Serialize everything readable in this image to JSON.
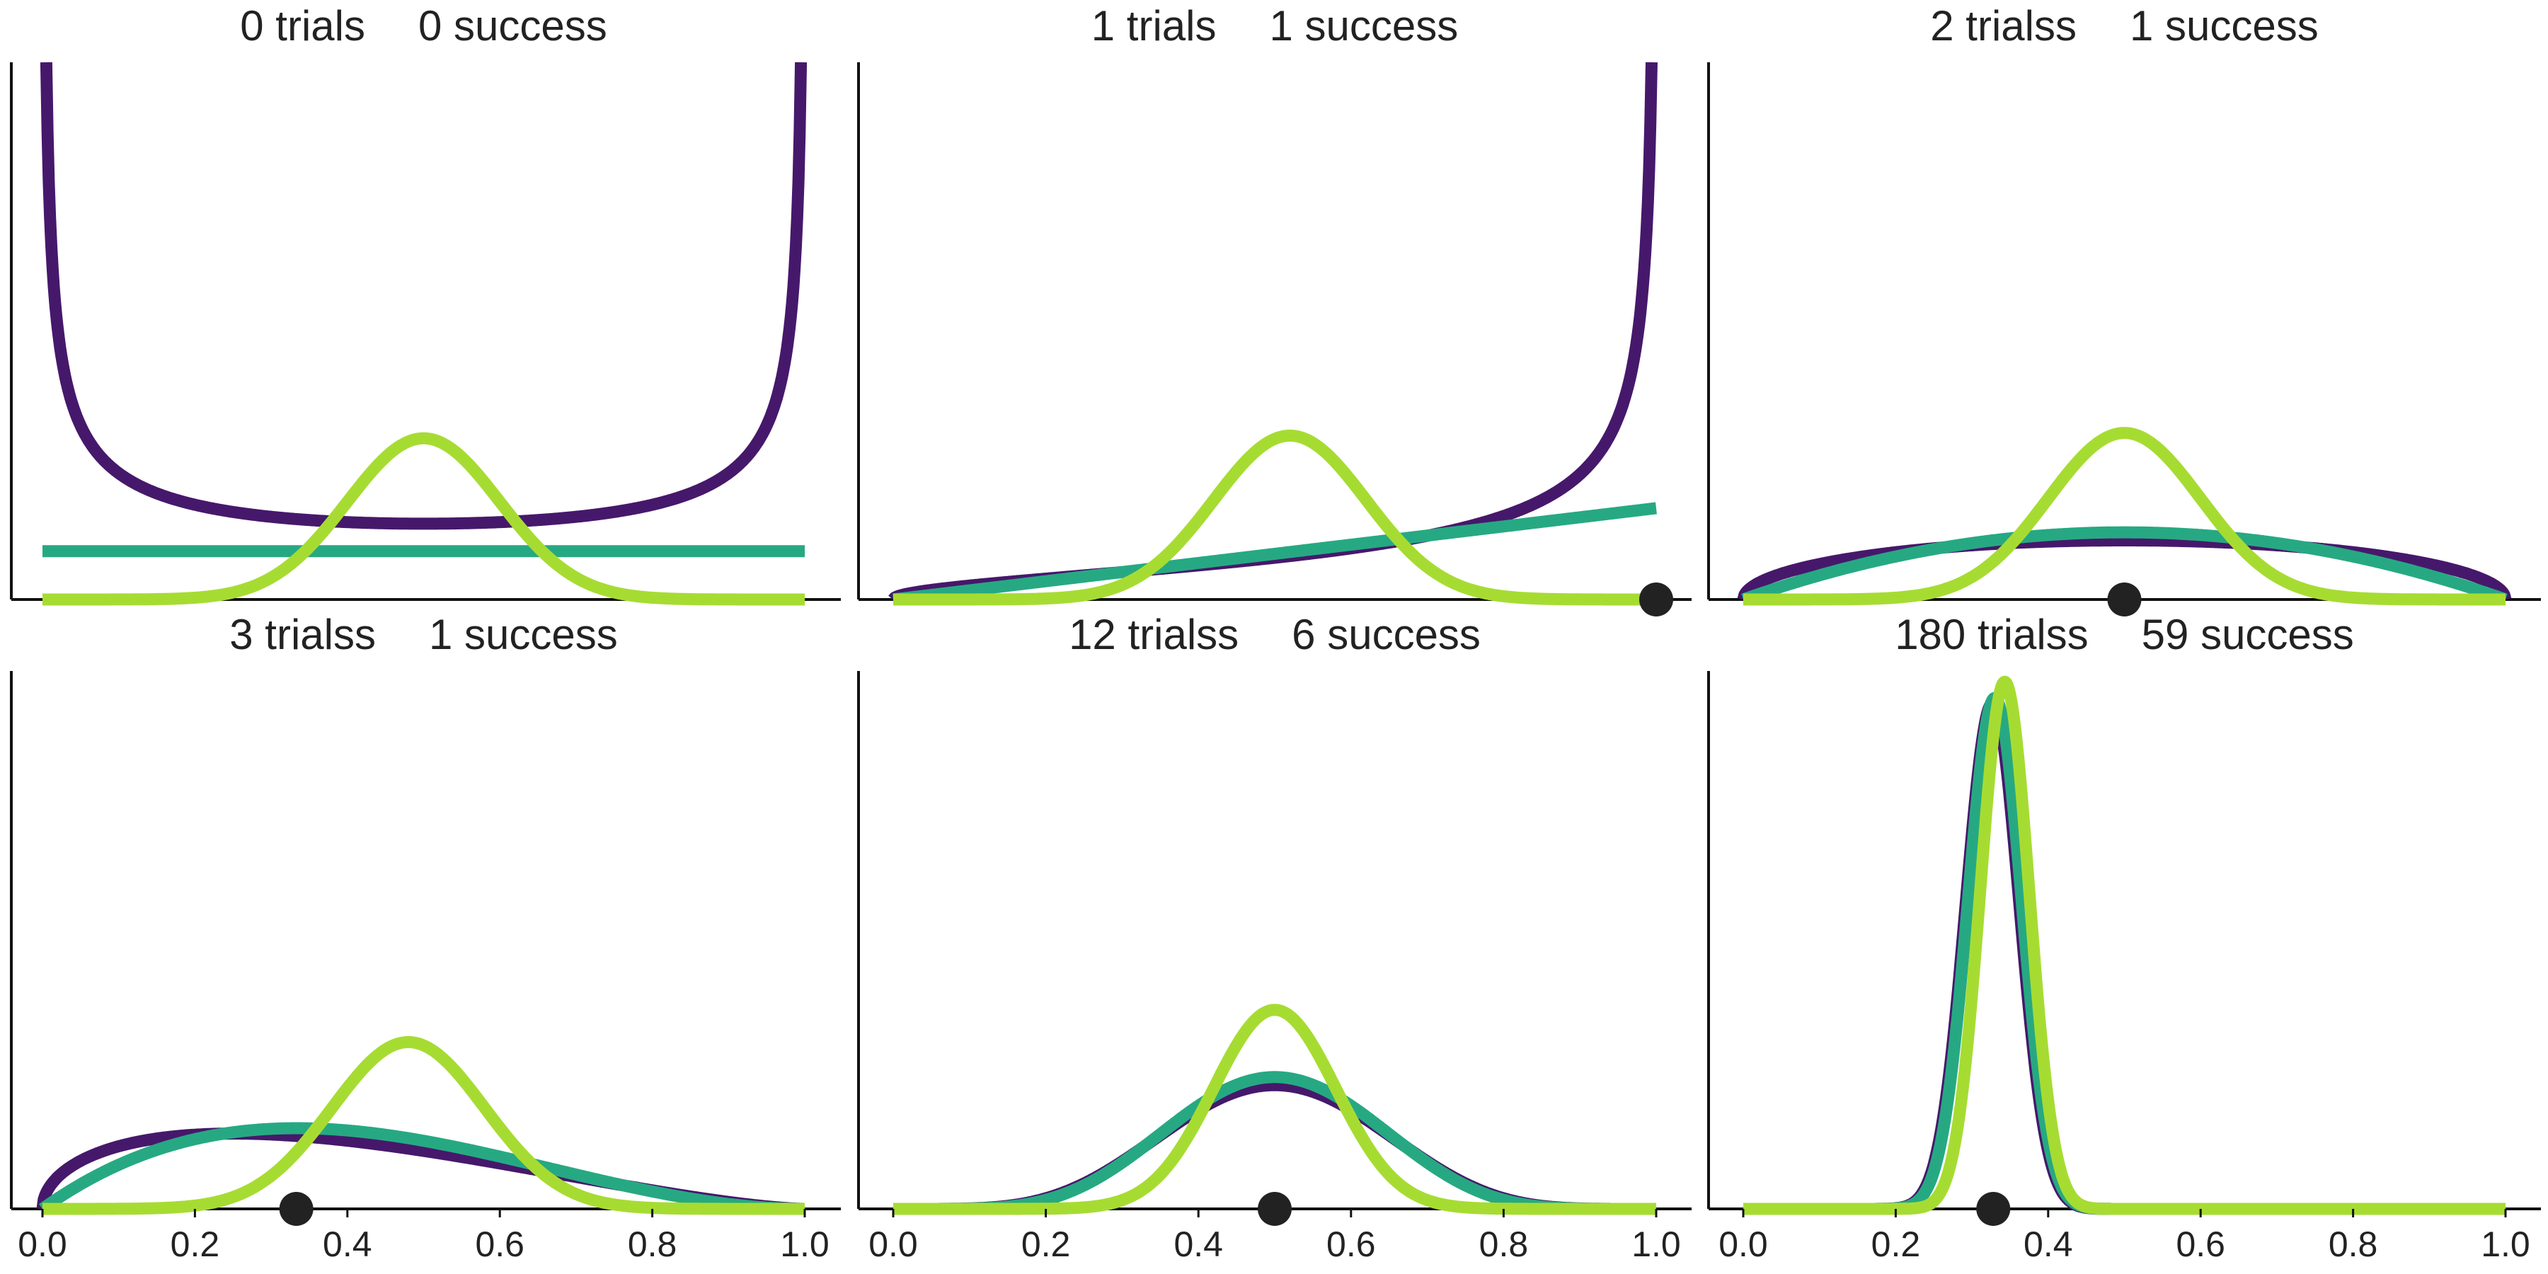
{
  "chart_data": [
    {
      "type": "line",
      "title_left": "0 trials",
      "title_right": "0 success",
      "xlim": [
        0,
        1
      ],
      "observed_point": null,
      "series": [
        {
          "color": "#46186b",
          "kind": "beta",
          "a": 0.5,
          "b": 0.5,
          "peak_frac": 1.0,
          "x_range": [
            0.005,
            0.995
          ]
        },
        {
          "color": "#26a982",
          "kind": "beta",
          "a": 1,
          "b": 1,
          "peak_frac": 0.09,
          "x_range": [
            0.0,
            1.0
          ]
        },
        {
          "color": "#a6dc32",
          "kind": "gauss",
          "mu": 0.5,
          "sigma": 0.1,
          "peak_frac": 0.3,
          "x_range": [
            0.0,
            1.0
          ]
        }
      ]
    },
    {
      "type": "line",
      "title_left": "1 trials",
      "title_right": "1 success",
      "xlim": [
        0,
        1
      ],
      "observed_point": 1.0,
      "series": [
        {
          "color": "#46186b",
          "kind": "beta",
          "a": 1.5,
          "b": 0.5,
          "peak_frac": 1.0,
          "x_range": [
            0.0,
            0.994
          ]
        },
        {
          "color": "#26a982",
          "kind": "beta",
          "a": 2,
          "b": 1,
          "peak_frac": 0.17,
          "x_range": [
            0.0,
            1.0
          ]
        },
        {
          "color": "#a6dc32",
          "kind": "gauss",
          "mu": 0.52,
          "sigma": 0.1,
          "peak_frac": 0.305,
          "x_range": [
            0.0,
            1.0
          ]
        }
      ]
    },
    {
      "type": "line",
      "title_left": "2 trialss",
      "title_right": "1 success",
      "xlim": [
        0,
        1
      ],
      "observed_point": 0.5,
      "series": [
        {
          "color": "#46186b",
          "kind": "beta",
          "a": 1.5,
          "b": 1.5,
          "peak_frac": 0.11,
          "x_range": [
            0.0,
            1.0
          ]
        },
        {
          "color": "#26a982",
          "kind": "beta",
          "a": 2,
          "b": 2,
          "peak_frac": 0.125,
          "x_range": [
            0.0,
            1.0
          ]
        },
        {
          "color": "#a6dc32",
          "kind": "gauss",
          "mu": 0.5,
          "sigma": 0.1,
          "peak_frac": 0.31,
          "x_range": [
            0.0,
            1.0
          ]
        }
      ]
    },
    {
      "type": "line",
      "title_left": "3 trialss",
      "title_right": "1 success",
      "xlim": [
        0,
        1
      ],
      "observed_point": 0.333,
      "series": [
        {
          "color": "#46186b",
          "kind": "beta",
          "a": 1.5,
          "b": 2.5,
          "peak_frac": 0.14,
          "x_range": [
            0.0,
            1.0
          ]
        },
        {
          "color": "#26a982",
          "kind": "beta",
          "a": 2,
          "b": 3,
          "peak_frac": 0.15,
          "x_range": [
            0.0,
            1.0
          ]
        },
        {
          "color": "#a6dc32",
          "kind": "gauss",
          "mu": 0.48,
          "sigma": 0.1,
          "peak_frac": 0.31,
          "x_range": [
            0.0,
            1.0
          ]
        }
      ]
    },
    {
      "type": "line",
      "title_left": "12 trialss",
      "title_right": "6 success",
      "xlim": [
        0,
        1
      ],
      "observed_point": 0.5,
      "series": [
        {
          "color": "#46186b",
          "kind": "beta",
          "a": 6.5,
          "b": 6.5,
          "peak_frac": 0.23,
          "x_range": [
            0.0,
            1.0
          ]
        },
        {
          "color": "#26a982",
          "kind": "beta",
          "a": 7,
          "b": 7,
          "peak_frac": 0.245,
          "x_range": [
            0.0,
            1.0
          ]
        },
        {
          "color": "#a6dc32",
          "kind": "gauss",
          "mu": 0.5,
          "sigma": 0.08,
          "peak_frac": 0.37,
          "x_range": [
            0.0,
            1.0
          ]
        }
      ]
    },
    {
      "type": "line",
      "title_left": "180 trialss",
      "title_right": "59 success",
      "xlim": [
        0,
        1
      ],
      "observed_point": 0.328,
      "series": [
        {
          "color": "#46186b",
          "kind": "gauss",
          "mu": 0.327,
          "sigma": 0.035,
          "peak_frac": 0.94,
          "x_range": [
            0.0,
            1.0
          ]
        },
        {
          "color": "#26a982",
          "kind": "gauss",
          "mu": 0.33,
          "sigma": 0.035,
          "peak_frac": 0.95,
          "x_range": [
            0.0,
            1.0
          ]
        },
        {
          "color": "#a6dc32",
          "kind": "gauss",
          "mu": 0.343,
          "sigma": 0.032,
          "peak_frac": 0.98,
          "x_range": [
            0.0,
            1.0
          ]
        }
      ]
    }
  ],
  "x_tick_labels": [
    "0.0",
    "0.2",
    "0.4",
    "0.6",
    "0.8",
    "1.0"
  ],
  "x_ticks": [
    0,
    0.2,
    0.4,
    0.6,
    0.8,
    1.0
  ],
  "point_color": "#222222"
}
